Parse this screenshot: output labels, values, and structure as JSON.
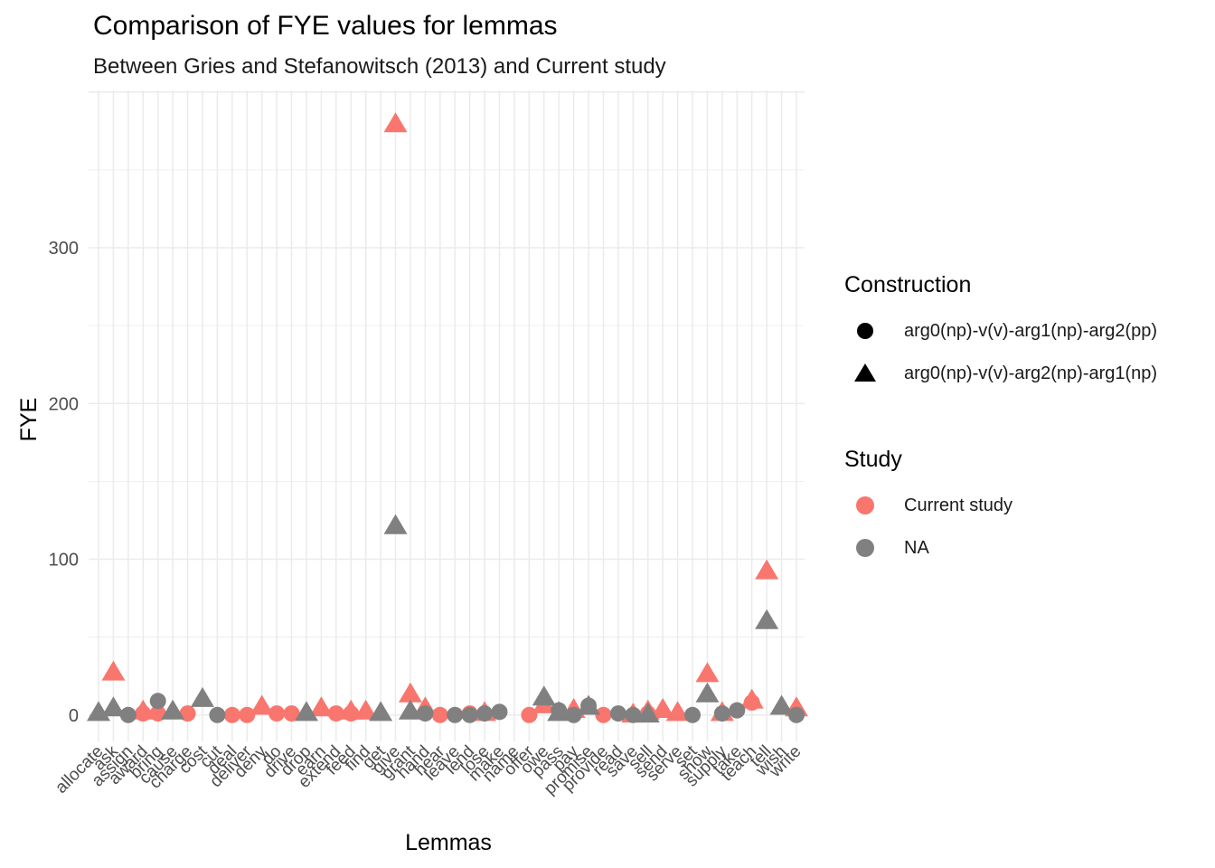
{
  "chart_data": {
    "type": "scatter",
    "title": "Comparison of FYE values for lemmas",
    "subtitle": "Between Gries and Stefanowitsch (2013) and Current study",
    "xlabel": "Lemmas",
    "ylabel": "FYE",
    "ylim": [
      -18,
      398
    ],
    "yticks": [
      0,
      100,
      200,
      300
    ],
    "grid": true,
    "legend_position": "right",
    "categories": [
      "allocate",
      "ask",
      "assign",
      "award",
      "bring",
      "cause",
      "charge",
      "cost",
      "cut",
      "deal",
      "deliver",
      "deny",
      "do",
      "drive",
      "drop",
      "earn",
      "extend",
      "feed",
      "find",
      "get",
      "give",
      "grant",
      "hand",
      "hear",
      "leave",
      "lend",
      "lose",
      "make",
      "name",
      "offer",
      "owe",
      "pass",
      "pay",
      "promise",
      "provide",
      "read",
      "save",
      "sell",
      "send",
      "serve",
      "set",
      "show",
      "supply",
      "take",
      "teach",
      "tell",
      "wish",
      "write"
    ],
    "legends": {
      "construction": {
        "title": "Construction",
        "items": [
          {
            "label": "arg0(np)-v(v)-arg1(np)-arg2(pp)",
            "shape": "circle"
          },
          {
            "label": "arg0(np)-v(v)-arg2(np)-arg1(np)",
            "shape": "triangle"
          }
        ]
      },
      "study": {
        "title": "Study",
        "items": [
          {
            "label": "Current study",
            "color": "#F8766D"
          },
          {
            "label": "NA",
            "color": "#808080"
          }
        ]
      }
    },
    "series": [
      {
        "name": "Current study",
        "color": "#F8766D",
        "points": [
          {
            "x": "ask",
            "y": 27,
            "shape": "triangle"
          },
          {
            "x": "award",
            "y": 1,
            "shape": "circle"
          },
          {
            "x": "award",
            "y": 2,
            "shape": "triangle"
          },
          {
            "x": "bring",
            "y": 1,
            "shape": "circle"
          },
          {
            "x": "charge",
            "y": 1,
            "shape": "circle"
          },
          {
            "x": "deal",
            "y": 0,
            "shape": "circle"
          },
          {
            "x": "deliver",
            "y": 0,
            "shape": "circle"
          },
          {
            "x": "deny",
            "y": 5,
            "shape": "triangle"
          },
          {
            "x": "do",
            "y": 1,
            "shape": "circle"
          },
          {
            "x": "drive",
            "y": 1,
            "shape": "circle"
          },
          {
            "x": "earn",
            "y": 4,
            "shape": "triangle"
          },
          {
            "x": "extend",
            "y": 1,
            "shape": "circle"
          },
          {
            "x": "feed",
            "y": 1,
            "shape": "circle"
          },
          {
            "x": "feed",
            "y": 2,
            "shape": "triangle"
          },
          {
            "x": "find",
            "y": 2,
            "shape": "triangle"
          },
          {
            "x": "give",
            "y": 379,
            "shape": "triangle"
          },
          {
            "x": "grant",
            "y": 13,
            "shape": "triangle"
          },
          {
            "x": "hand",
            "y": 4,
            "shape": "triangle"
          },
          {
            "x": "hear",
            "y": 0,
            "shape": "circle"
          },
          {
            "x": "lend",
            "y": 1,
            "shape": "circle"
          },
          {
            "x": "lose",
            "y": 1,
            "shape": "triangle"
          },
          {
            "x": "offer",
            "y": 0,
            "shape": "circle"
          },
          {
            "x": "owe",
            "y": 6,
            "shape": "triangle"
          },
          {
            "x": "pay",
            "y": 3,
            "shape": "triangle"
          },
          {
            "x": "provide",
            "y": 0,
            "shape": "circle"
          },
          {
            "x": "save",
            "y": 0,
            "shape": "triangle"
          },
          {
            "x": "sell",
            "y": 1,
            "shape": "circle"
          },
          {
            "x": "sell",
            "y": 2,
            "shape": "triangle"
          },
          {
            "x": "send",
            "y": 3,
            "shape": "triangle"
          },
          {
            "x": "serve",
            "y": 1,
            "shape": "triangle"
          },
          {
            "x": "show",
            "y": 26,
            "shape": "triangle"
          },
          {
            "x": "supply",
            "y": 1,
            "shape": "triangle"
          },
          {
            "x": "teach",
            "y": 8,
            "shape": "circle"
          },
          {
            "x": "teach",
            "y": 9,
            "shape": "triangle"
          },
          {
            "x": "tell",
            "y": 92,
            "shape": "triangle"
          },
          {
            "x": "write",
            "y": 4,
            "shape": "triangle"
          }
        ]
      },
      {
        "name": "NA",
        "color": "#808080",
        "points": [
          {
            "x": "allocate",
            "y": 1,
            "shape": "triangle"
          },
          {
            "x": "ask",
            "y": 4,
            "shape": "triangle"
          },
          {
            "x": "assign",
            "y": 0,
            "shape": "circle"
          },
          {
            "x": "bring",
            "y": 9,
            "shape": "circle"
          },
          {
            "x": "cause",
            "y": 2,
            "shape": "triangle"
          },
          {
            "x": "cost",
            "y": 10,
            "shape": "triangle"
          },
          {
            "x": "cut",
            "y": 0,
            "shape": "circle"
          },
          {
            "x": "drop",
            "y": 1,
            "shape": "triangle"
          },
          {
            "x": "get",
            "y": 1,
            "shape": "triangle"
          },
          {
            "x": "give",
            "y": 121,
            "shape": "triangle"
          },
          {
            "x": "grant",
            "y": 2,
            "shape": "triangle"
          },
          {
            "x": "hand",
            "y": 1,
            "shape": "circle"
          },
          {
            "x": "leave",
            "y": 0,
            "shape": "circle"
          },
          {
            "x": "lend",
            "y": 0,
            "shape": "circle"
          },
          {
            "x": "lose",
            "y": 1,
            "shape": "circle"
          },
          {
            "x": "make",
            "y": 2,
            "shape": "circle"
          },
          {
            "x": "owe",
            "y": 11,
            "shape": "triangle"
          },
          {
            "x": "pass",
            "y": 1,
            "shape": "triangle"
          },
          {
            "x": "pass",
            "y": 3,
            "shape": "circle"
          },
          {
            "x": "pay",
            "y": 0,
            "shape": "circle"
          },
          {
            "x": "promise",
            "y": 6,
            "shape": "circle"
          },
          {
            "x": "promise",
            "y": 5,
            "shape": "triangle"
          },
          {
            "x": "read",
            "y": 1,
            "shape": "circle"
          },
          {
            "x": "save",
            "y": 0,
            "shape": "circle"
          },
          {
            "x": "sell",
            "y": 0,
            "shape": "triangle"
          },
          {
            "x": "set",
            "y": 0,
            "shape": "circle"
          },
          {
            "x": "show",
            "y": 13,
            "shape": "triangle"
          },
          {
            "x": "supply",
            "y": 1,
            "shape": "circle"
          },
          {
            "x": "take",
            "y": 3,
            "shape": "circle"
          },
          {
            "x": "tell",
            "y": 60,
            "shape": "triangle"
          },
          {
            "x": "wish",
            "y": 5,
            "shape": "triangle"
          },
          {
            "x": "write",
            "y": 0,
            "shape": "circle"
          }
        ]
      }
    ]
  }
}
